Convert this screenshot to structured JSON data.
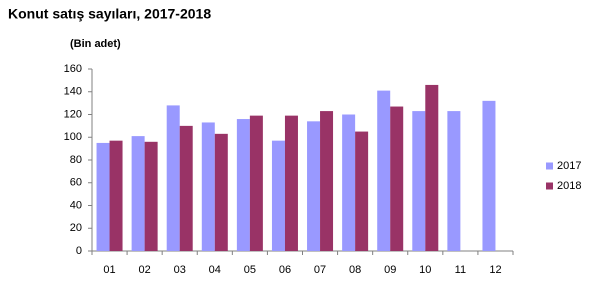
{
  "chart_data": {
    "type": "bar",
    "title": "Konut satış sayıları, 2017-2018",
    "y_label": "(Bin adet)",
    "categories": [
      "01",
      "02",
      "03",
      "04",
      "05",
      "06",
      "07",
      "08",
      "09",
      "10",
      "11",
      "12"
    ],
    "series": [
      {
        "name": "2017",
        "color": "#9999ff",
        "values": [
          95,
          101,
          128,
          113,
          116,
          97,
          114,
          120,
          141,
          123,
          123,
          132
        ]
      },
      {
        "name": "2018",
        "color": "#993366",
        "values": [
          97,
          96,
          110,
          103,
          119,
          119,
          123,
          105,
          127,
          146,
          null,
          null
        ]
      }
    ],
    "ylim": [
      0,
      160
    ],
    "yticks": [
      0,
      20,
      40,
      60,
      80,
      100,
      120,
      140,
      160
    ],
    "grid": false,
    "legend": "right"
  }
}
